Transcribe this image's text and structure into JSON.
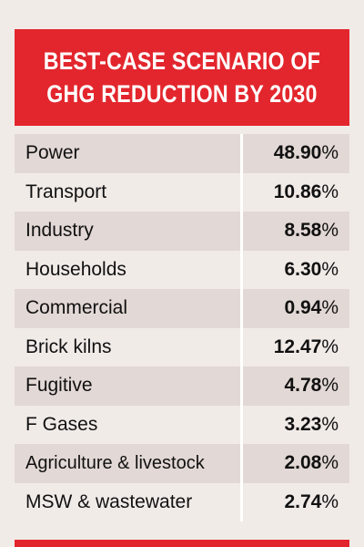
{
  "header": {
    "line1": "BEST-CASE SCENARIO OF",
    "line2": "GHG REDUCTION BY 2030"
  },
  "rows": [
    {
      "label": "Power",
      "value": "48.90",
      "unit": "%"
    },
    {
      "label": "Transport",
      "value": "10.86",
      "unit": "%"
    },
    {
      "label": "Industry",
      "value": "8.58",
      "unit": "%"
    },
    {
      "label": "Households",
      "value": "6.30",
      "unit": "%"
    },
    {
      "label": "Commercial",
      "value": "0.94",
      "unit": "%"
    },
    {
      "label": "Brick kilns",
      "value": "12.47",
      "unit": "%"
    },
    {
      "label": "Fugitive",
      "value": "4.78",
      "unit": "%"
    },
    {
      "label": "F Gases",
      "value": "3.23",
      "unit": "%"
    },
    {
      "label": "Agriculture & livestock",
      "value": "2.08",
      "unit": "%"
    },
    {
      "label": "MSW & wastewater",
      "value": "2.74",
      "unit": "%"
    }
  ],
  "colors": {
    "accent": "#e3262d",
    "background": "#f1ebe8",
    "shaded_row": "#e2d8d5"
  }
}
